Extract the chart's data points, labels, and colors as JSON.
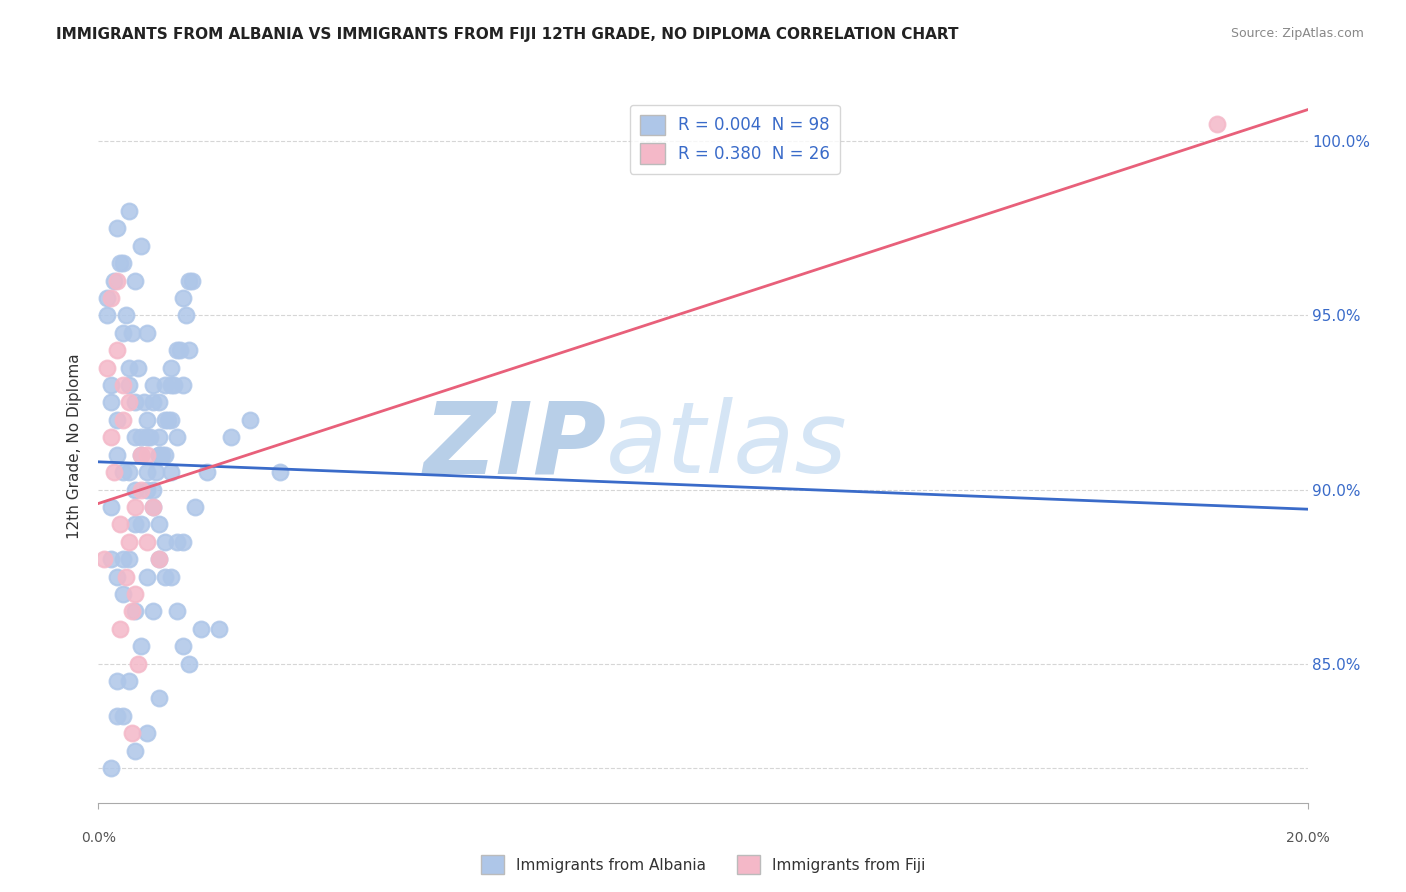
{
  "title": "IMMIGRANTS FROM ALBANIA VS IMMIGRANTS FROM FIJI 12TH GRADE, NO DIPLOMA CORRELATION CHART",
  "source": "Source: ZipAtlas.com",
  "ylabel": "12th Grade, No Diploma",
  "yticks": [
    82.0,
    85.0,
    90.0,
    95.0,
    100.0
  ],
  "ytick_labels": [
    "",
    "85.0%",
    "90.0%",
    "95.0%",
    "100.0%"
  ],
  "xlim": [
    0.0,
    20.0
  ],
  "ylim": [
    81.0,
    101.5
  ],
  "albania_R": 0.004,
  "albania_N": 98,
  "fiji_R": 0.38,
  "fiji_N": 26,
  "albania_color": "#aec6e8",
  "fiji_color": "#f4b8c8",
  "albania_line_color": "#3a6bc9",
  "fiji_line_color": "#e8607a",
  "background_color": "#ffffff",
  "watermark_zip": "ZIP",
  "watermark_atlas": "atlas",
  "watermark_color_zip": "#c5d8f0",
  "watermark_color_atlas": "#d8e8f8",
  "albania_x": [
    0.2,
    0.3,
    0.15,
    0.4,
    0.5,
    0.6,
    0.8,
    0.9,
    1.0,
    1.1,
    1.2,
    1.3,
    1.4,
    1.5,
    0.7,
    0.3,
    0.5,
    0.2,
    0.4,
    0.6,
    0.8,
    1.0,
    1.2,
    1.5,
    1.7,
    0.3,
    0.5,
    0.7,
    0.9,
    1.1,
    1.3,
    0.2,
    0.4,
    0.6,
    0.8,
    1.0,
    1.2,
    1.4,
    0.3,
    0.5,
    0.7,
    0.9,
    1.1,
    0.2,
    0.4,
    0.6,
    0.8,
    1.0,
    2.5,
    3.0,
    0.15,
    0.25,
    0.35,
    0.45,
    0.55,
    0.65,
    0.75,
    0.85,
    0.95,
    1.05,
    1.15,
    1.25,
    1.35,
    1.45,
    1.55,
    0.5,
    0.6,
    0.7,
    0.8,
    0.9,
    1.0,
    1.1,
    1.2,
    1.3,
    1.4,
    0.3,
    0.4,
    0.6,
    0.8,
    1.0,
    1.5,
    2.0,
    0.2,
    0.3,
    0.5,
    0.7,
    0.9,
    1.1,
    1.3,
    1.6,
    1.8,
    2.2,
    0.4,
    0.6,
    0.8,
    1.0,
    1.2,
    1.4
  ],
  "albania_y": [
    92.5,
    97.5,
    95.0,
    96.5,
    98.0,
    96.0,
    94.5,
    93.0,
    91.5,
    92.0,
    93.5,
    94.0,
    95.5,
    96.0,
    97.0,
    91.0,
    90.5,
    93.0,
    94.5,
    90.0,
    91.5,
    92.5,
    93.0,
    94.0,
    86.0,
    92.0,
    93.5,
    91.0,
    92.5,
    93.0,
    91.5,
    89.5,
    90.5,
    91.5,
    92.0,
    91.0,
    90.5,
    88.5,
    87.5,
    88.0,
    89.0,
    90.0,
    91.0,
    88.0,
    87.0,
    86.5,
    87.5,
    88.0,
    92.0,
    90.5,
    95.5,
    96.0,
    96.5,
    95.0,
    94.5,
    93.5,
    92.5,
    91.5,
    90.5,
    91.0,
    92.0,
    93.0,
    94.0,
    95.0,
    96.0,
    93.0,
    92.5,
    91.5,
    90.5,
    89.5,
    89.0,
    88.5,
    87.5,
    86.5,
    85.5,
    84.5,
    83.5,
    82.5,
    83.0,
    84.0,
    85.0,
    86.0,
    82.0,
    83.5,
    84.5,
    85.5,
    86.5,
    87.5,
    88.5,
    89.5,
    90.5,
    91.5,
    88.0,
    89.0,
    90.0,
    91.0,
    92.0,
    93.0
  ],
  "fiji_x": [
    0.1,
    0.2,
    0.3,
    0.15,
    0.25,
    0.35,
    0.45,
    0.55,
    0.65,
    0.4,
    0.5,
    0.6,
    0.7,
    0.8,
    0.9,
    1.0,
    0.3,
    0.5,
    0.7,
    0.2,
    0.4,
    0.6,
    0.8,
    18.5,
    0.35,
    0.55
  ],
  "fiji_y": [
    88.0,
    91.5,
    96.0,
    93.5,
    90.5,
    89.0,
    87.5,
    86.5,
    85.0,
    92.0,
    88.5,
    87.0,
    90.0,
    91.0,
    89.5,
    88.0,
    94.0,
    92.5,
    91.0,
    95.5,
    93.0,
    89.5,
    88.5,
    100.5,
    86.0,
    83.0
  ]
}
